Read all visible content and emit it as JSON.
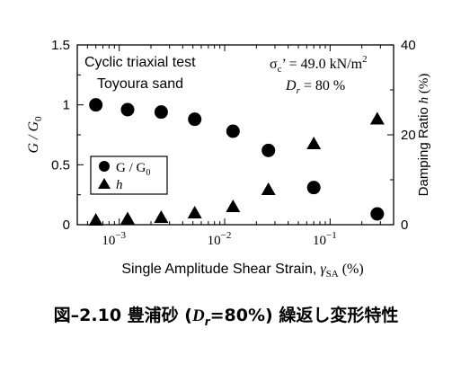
{
  "chart_data": {
    "type": "scatter",
    "x_scale": "log",
    "xlabel": "Single Amplitude Shear Strain,",
    "xlabel_symbol": "γ",
    "xlabel_sub": "SA",
    "xlabel_unit": "(%)",
    "x_ticks": [
      {
        "value": 0.001,
        "base": "10",
        "exp": "−3"
      },
      {
        "value": 0.01,
        "base": "10",
        "exp": "−2"
      },
      {
        "value": 0.1,
        "base": "10",
        "exp": "−1"
      }
    ],
    "xlim": [
      0.0004,
      0.4
    ],
    "ylabel_left": "G / G",
    "ylabel_left_sub": "0",
    "ylim_left": [
      0,
      1.5
    ],
    "yticks_left": [
      "0",
      "0.5",
      "1",
      "1.5"
    ],
    "ylabel_right_text": "Damping Ratio",
    "ylabel_right_symbol": "h",
    "ylabel_right_unit": "(%)",
    "ylim_right": [
      0,
      40
    ],
    "yticks_right": [
      "0",
      "20",
      "40"
    ],
    "annotations": {
      "test": "Cyclic triaxial test",
      "material": "Toyoura sand",
      "sigma_symbol": "σ",
      "sigma_sub": "c",
      "sigma_value": "’ = 49.0 kN/m",
      "sigma_sup": "2",
      "dr_symbol": "D",
      "dr_sub": "r",
      "dr_value": " = 80 %"
    },
    "legend": {
      "placement": "middle-left",
      "entries": [
        {
          "marker": "circle",
          "label": "G / G",
          "sub": "0"
        },
        {
          "marker": "triangle",
          "label": "h",
          "sub": ""
        }
      ]
    },
    "series": [
      {
        "name": "G / G0",
        "axis": "left",
        "marker": "circle",
        "points": [
          [
            0.0006,
            1.0
          ],
          [
            0.0012,
            0.96
          ],
          [
            0.0025,
            0.94
          ],
          [
            0.0052,
            0.88
          ],
          [
            0.012,
            0.78
          ],
          [
            0.026,
            0.62
          ],
          [
            0.07,
            0.31
          ],
          [
            0.28,
            0.09
          ]
        ]
      },
      {
        "name": "h",
        "axis": "right",
        "marker": "triangle",
        "points": [
          [
            0.0006,
            1.0
          ],
          [
            0.0012,
            1.3
          ],
          [
            0.0025,
            1.6
          ],
          [
            0.0052,
            2.6
          ],
          [
            0.012,
            4.0
          ],
          [
            0.026,
            7.8
          ],
          [
            0.07,
            18.0
          ],
          [
            0.28,
            23.5
          ]
        ]
      }
    ]
  },
  "caption": {
    "prefix": "図–2.10",
    "text1": "豊浦砂 (",
    "d": "D",
    "r": "r",
    "text2": "=80%) 繰返し変形特性"
  }
}
